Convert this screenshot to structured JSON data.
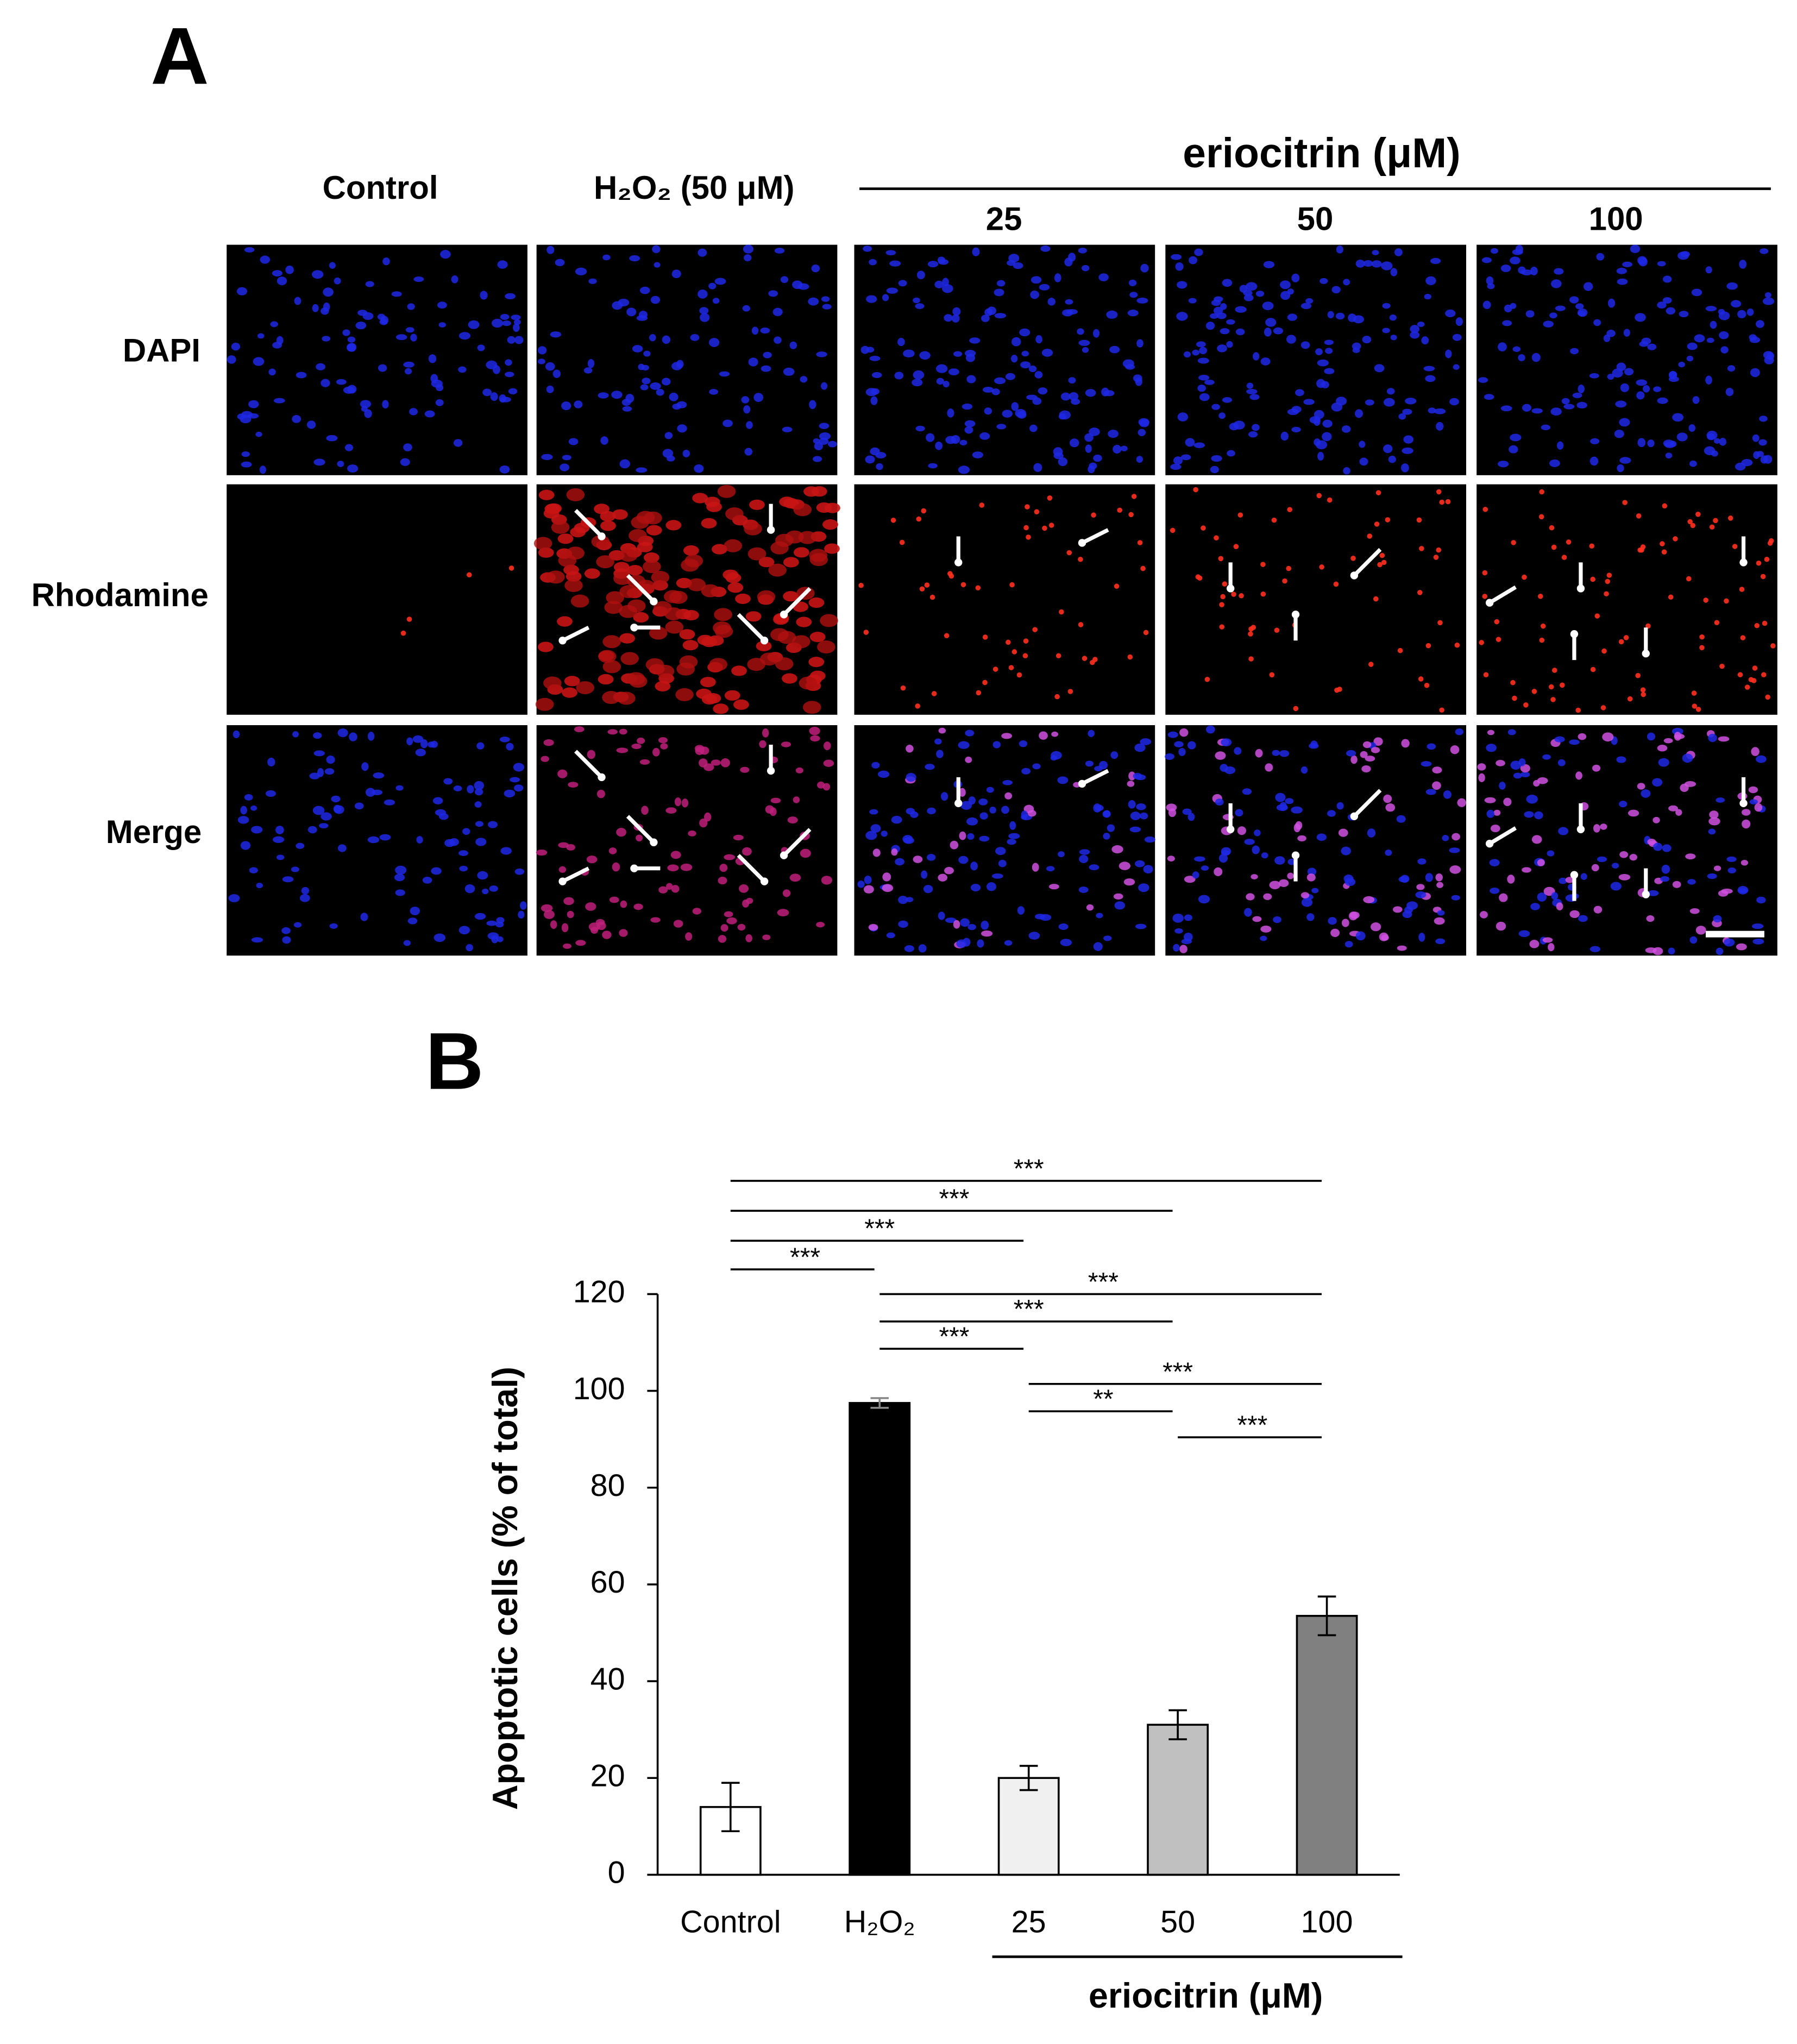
{
  "panel_a": {
    "title": "A",
    "columns": [
      "Control",
      "H₂O₂ (50 μM)"
    ],
    "group": {
      "label": "eriocitrin (μM)",
      "columns": [
        "25",
        "50",
        "100"
      ]
    },
    "rows": [
      "DAPI",
      "Rhodamine",
      "Merge"
    ]
  },
  "chart_data": {
    "type": "bar",
    "panel_label": "B",
    "ylabel": "Apoptotic cells (% of total)",
    "categories": [
      "Control",
      "H₂O₂",
      "25",
      "50",
      "100"
    ],
    "values": [
      14,
      97.5,
      20,
      31,
      53.5
    ],
    "errors": [
      5,
      1,
      2.5,
      3,
      4
    ],
    "colors": [
      "#ffffff",
      "#000000",
      "#f0f0f0",
      "#c0c0c0",
      "#808080"
    ],
    "ylim": [
      0,
      120
    ],
    "yticks": [
      0,
      20,
      40,
      60,
      80,
      100,
      120
    ],
    "group_label": "eriocitrin (μM)",
    "significance": [
      {
        "groups": [
          0,
          1
        ],
        "label": "***"
      },
      {
        "groups": [
          0,
          2
        ],
        "label": "***"
      },
      {
        "groups": [
          0,
          3
        ],
        "label": "***"
      },
      {
        "groups": [
          0,
          4
        ],
        "label": "***"
      },
      {
        "groups": [
          1,
          2
        ],
        "label": "***"
      },
      {
        "groups": [
          1,
          3
        ],
        "label": "***"
      },
      {
        "groups": [
          1,
          4
        ],
        "label": "***"
      },
      {
        "groups": [
          2,
          3
        ],
        "label": "**"
      },
      {
        "groups": [
          2,
          4
        ],
        "label": "***"
      },
      {
        "groups": [
          3,
          4
        ],
        "label": "***"
      }
    ]
  }
}
